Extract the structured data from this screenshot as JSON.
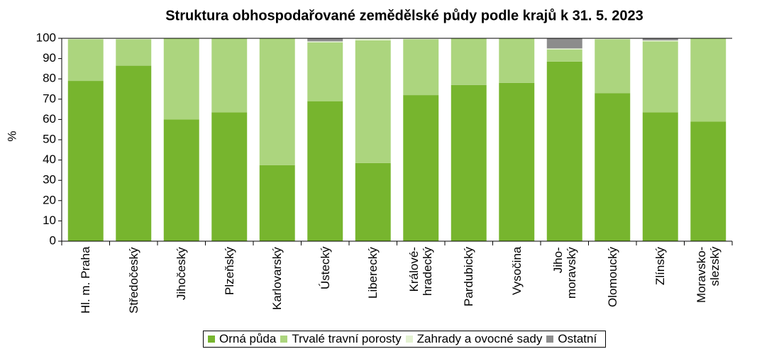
{
  "chart_data": {
    "type": "bar",
    "stacked": true,
    "title": "Struktura obhospodařované zemědělské půdy podle krajů k 31. 5. 2023",
    "y_label": "%",
    "categories": [
      "Hl. m. Praha",
      "Středočeský",
      "Jihočeský",
      "Plzeňský",
      "Karlovarský",
      "Ústecký",
      "Liberecký",
      "Králové-\nhradecký",
      "Pardubický",
      "Vysočina",
      "Jiho-\nmoravský",
      "Olomoucký",
      "Zlínský",
      "Moravsko-\nslezský"
    ],
    "series": [
      {
        "name": "Orná půda",
        "color": "#77b52e",
        "values": [
          79,
          86.5,
          60,
          63.5,
          37.5,
          69,
          38.5,
          72,
          77,
          78,
          88.5,
          73,
          63.5,
          59
        ]
      },
      {
        "name": "Trvalé travní porosty",
        "color": "#acd57e",
        "values": [
          20.5,
          13,
          40,
          36.5,
          62.5,
          29,
          60.5,
          27.5,
          23,
          22,
          6,
          26.5,
          35,
          41
        ]
      },
      {
        "name": "Zahrady a ovocné sady",
        "color": "#e4f2d2",
        "values": [
          0.5,
          0.5,
          0,
          0,
          0,
          0.5,
          1,
          0.5,
          0,
          0,
          0.5,
          0.5,
          0.5,
          0
        ]
      },
      {
        "name": "Ostatní",
        "color": "#8c8c8c",
        "values": [
          0,
          0,
          0,
          0,
          0,
          1.5,
          0,
          0,
          0,
          0,
          5,
          0,
          1,
          0
        ]
      }
    ],
    "ylim": [
      0,
      100
    ],
    "yticks": [
      0,
      10,
      20,
      30,
      40,
      50,
      60,
      70,
      80,
      90,
      100
    ],
    "legend": "bottom"
  }
}
